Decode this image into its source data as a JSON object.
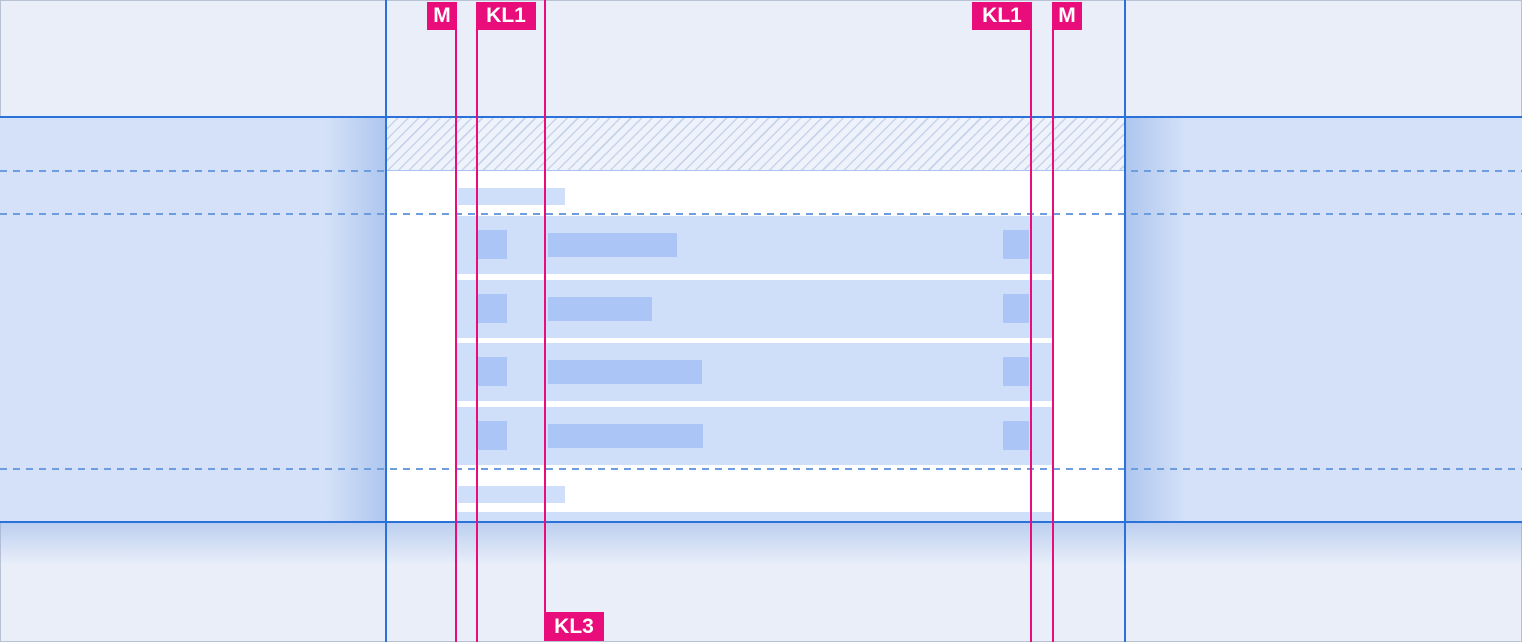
{
  "diagram": {
    "badges": {
      "margin_left": "M",
      "column_left": "KL1",
      "column_right": "KL1",
      "margin_right": "M",
      "column_bottom": "KL3"
    },
    "colors": {
      "background": "#e9eef9",
      "band": "#d4e1f8",
      "viewport_line": "#2a72da",
      "dashed_line": "#6d9ddf",
      "guide_line": "#e80d7a",
      "badge_bg": "#e80d7a",
      "badge_text": "#ffffff",
      "hatch_bg": "#edf2fb",
      "hatch_stripe": "#c8d3ea",
      "card": "#ffffff",
      "row_band": "#cfdff9",
      "placeholder": "#abc5f7"
    },
    "wireframe": {
      "rows": [
        {
          "text_width": 129
        },
        {
          "text_width": 104
        },
        {
          "text_width": 154
        },
        {
          "text_width": 155
        }
      ]
    }
  }
}
